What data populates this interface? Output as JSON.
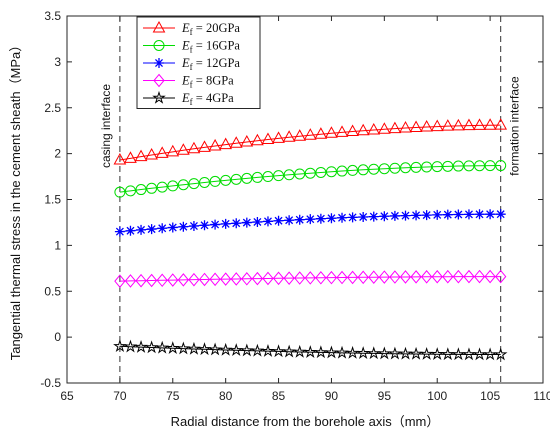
{
  "chart_data": {
    "type": "line",
    "xlabel": "Radial distance from the borehole axis（mm）",
    "ylabel": "Tangential thermal stress in the cement sheath（MPa）",
    "xlim": [
      65,
      110
    ],
    "ylim": [
      -0.5,
      3.5
    ],
    "xticks": [
      "65",
      "70",
      "75",
      "80",
      "85",
      "90",
      "95",
      "100",
      "105",
      "110"
    ],
    "yticks": [
      "-0.5",
      "0",
      "0.5",
      "1",
      "1.5",
      "2",
      "2.5",
      "3",
      "3.5"
    ],
    "grid": false,
    "legend_position": "top-left",
    "x_start": 70,
    "x_end": 106,
    "num_points": 37,
    "annotations": [
      {
        "text": "casing interface",
        "x": 70
      },
      {
        "text": "formation interface",
        "x": 106
      }
    ],
    "series": [
      {
        "name": "E_f = 20GPa",
        "modulus": "20GPa",
        "color": "#ff0000",
        "marker": "triangle",
        "y_start": 1.93,
        "y_end": 2.31
      },
      {
        "name": "E_f = 16GPa",
        "modulus": "16GPa",
        "color": "#00dd00",
        "marker": "circle",
        "y_start": 1.58,
        "y_end": 1.87
      },
      {
        "name": "E_f = 12GPa",
        "modulus": "12GPa",
        "color": "#0000ff",
        "marker": "asterisk",
        "y_start": 1.15,
        "y_end": 1.34
      },
      {
        "name": "E_f = 8GPa",
        "modulus": "8GPa",
        "color": "#ff00ff",
        "marker": "diamond",
        "y_start": 0.61,
        "y_end": 0.66
      },
      {
        "name": "E_f = 4GPa",
        "modulus": "4GPa",
        "color": "#000000",
        "marker": "star",
        "y_start": -0.1,
        "y_end": -0.19
      }
    ]
  }
}
